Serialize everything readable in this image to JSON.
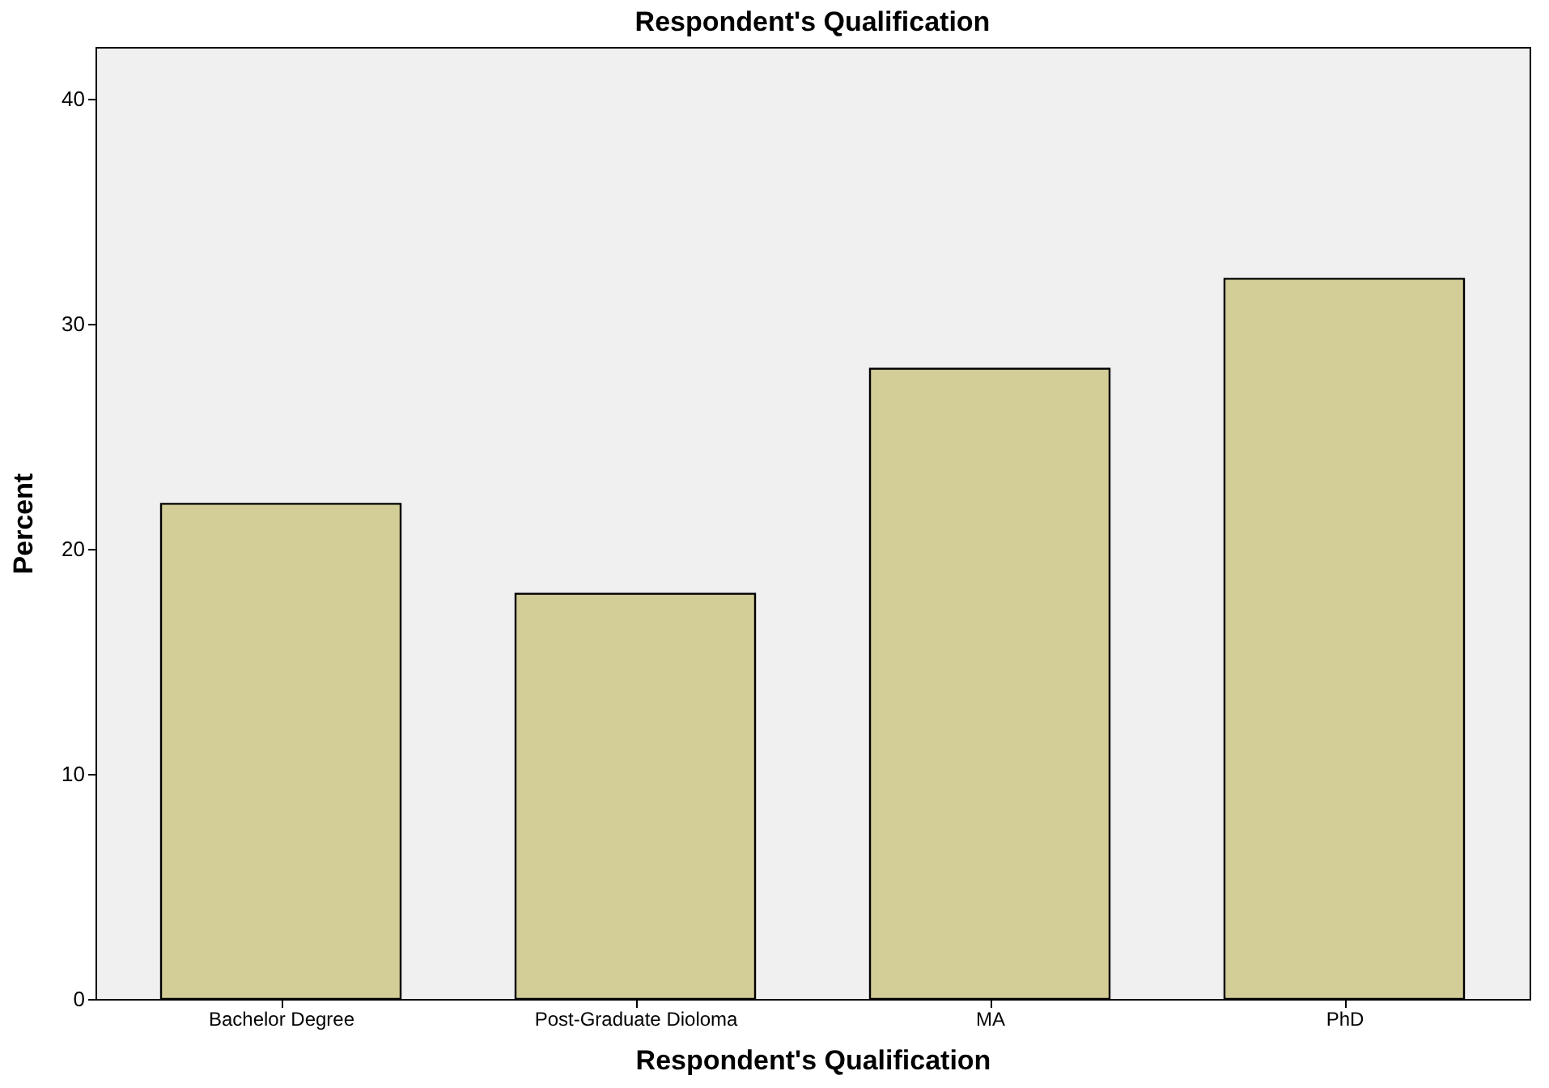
{
  "chart_data": {
    "type": "bar",
    "title": "Respondent's Qualification",
    "xlabel": "Respondent's Qualification",
    "ylabel": "Percent",
    "categories": [
      "Bachelor Degree",
      "Post-Graduate Dioloma",
      "MA",
      "PhD"
    ],
    "values": [
      22,
      18,
      28,
      32
    ],
    "color": "#d3cd97",
    "ylim": [
      0,
      42.3
    ],
    "yticks": [
      0,
      10,
      20,
      30,
      40
    ],
    "grid": false
  }
}
